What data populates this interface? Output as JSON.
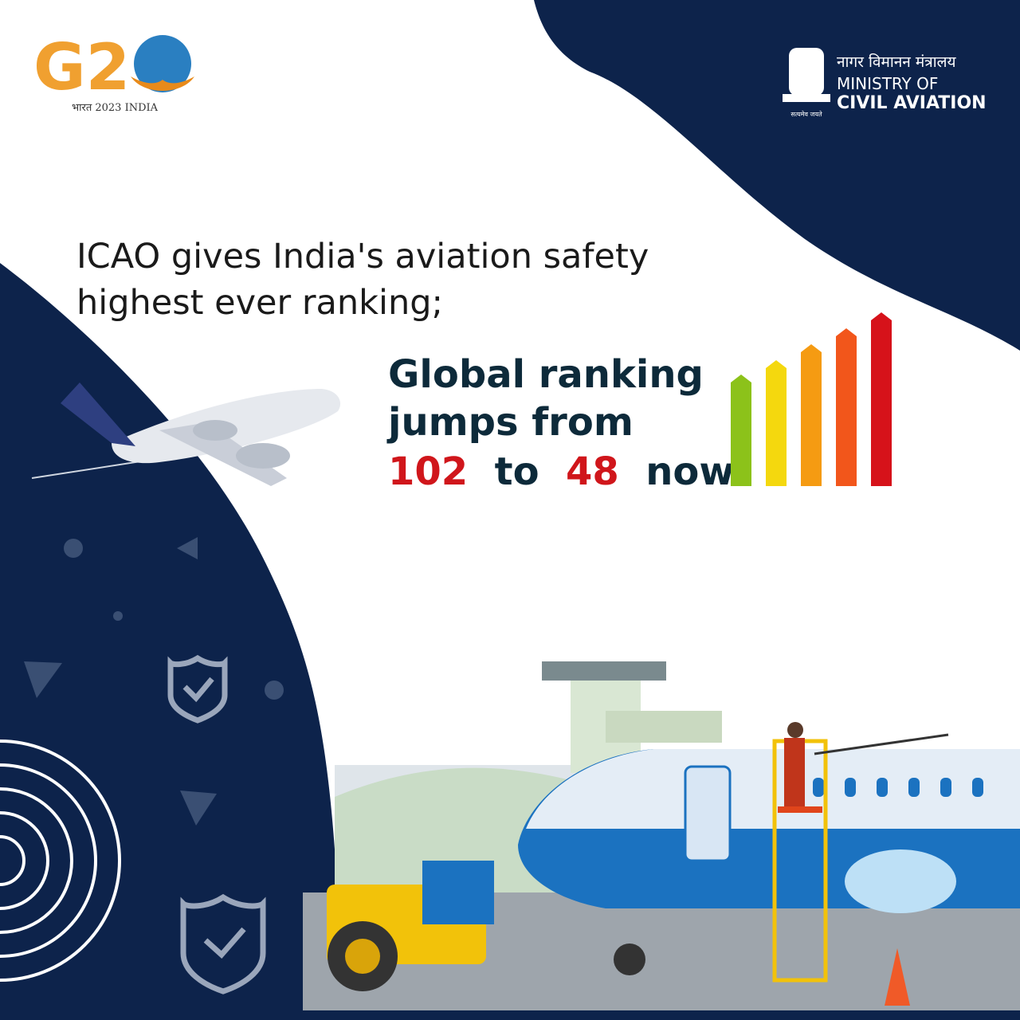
{
  "logo": {
    "mark": "G2",
    "caption": "भारत 2023 INDIA"
  },
  "ministry": {
    "hindi": "नागर विमानन मंत्रालय",
    "line1": "MINISTRY OF",
    "line2": "CIVIL AVIATION",
    "motto": "सत्यमेव जयते"
  },
  "headline": [
    "ICAO gives India's aviation safety",
    "highest ever ranking;"
  ],
  "ranking": {
    "line1": "Global ranking",
    "line2": "jumps from",
    "from": "102",
    "to": "to",
    "now_value": "48",
    "now": "now."
  }
}
